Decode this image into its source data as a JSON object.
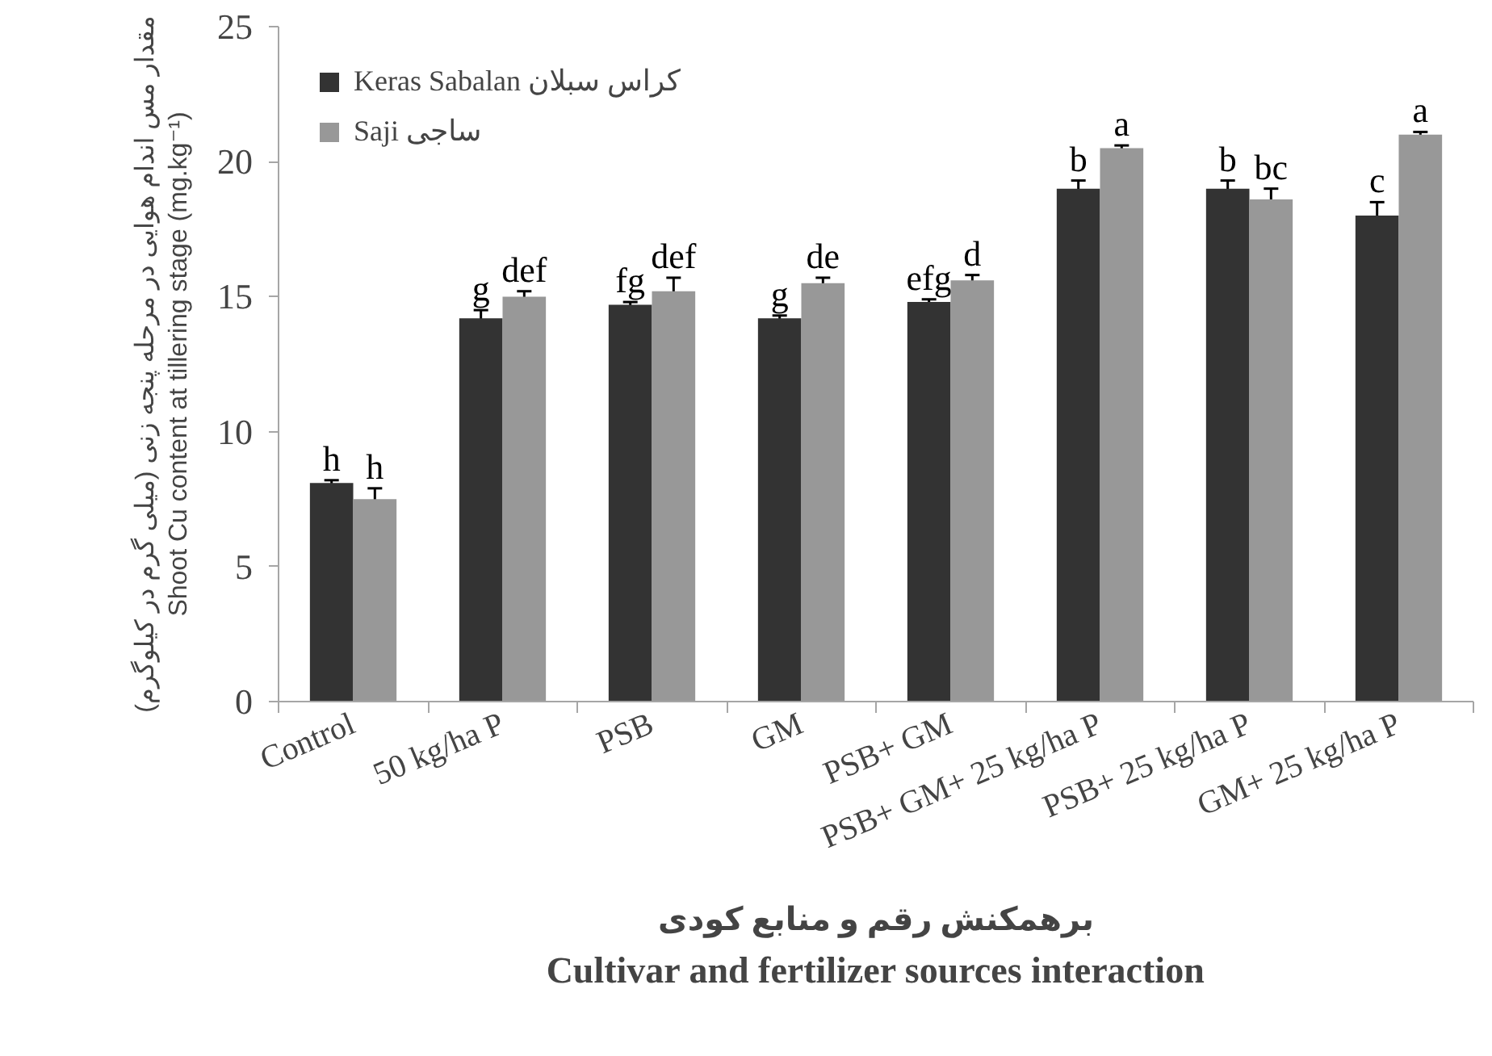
{
  "chart_data": {
    "type": "bar",
    "ylabel": "مقدار مس اندام هوایی در مرحله پنجه زنی (میلی گرم در کیلوگرم)\nShoot Cu content at tillering stage (mg.kg⁻¹)",
    "xlabel": "برهمکنش رقم و منابع کودی\nCultivar and fertilizer sources interaction",
    "categories": [
      "Control",
      "50 kg/ha P",
      "PSB",
      "GM",
      "PSB+ GM",
      "PSB+ GM+ 25 kg/ha P",
      "PSB+ 25 kg/ha P",
      "GM+ 25 kg/ha P"
    ],
    "series": [
      {
        "name": "Keras Sabalan کراس سبلان",
        "color": "#333333",
        "values": [
          8.1,
          14.2,
          14.7,
          14.2,
          14.8,
          19.0,
          19.0,
          18.0
        ],
        "errors": [
          0.1,
          0.3,
          0.1,
          0.1,
          0.1,
          0.3,
          0.3,
          0.5
        ],
        "value_labels": [
          "h",
          "g",
          "fg",
          "g",
          "efg",
          "b",
          "b",
          "c"
        ]
      },
      {
        "name": "Saji ساجی",
        "color": "#989898",
        "values": [
          7.5,
          15.0,
          15.2,
          15.5,
          15.6,
          20.5,
          18.6,
          21.0
        ],
        "errors": [
          0.4,
          0.2,
          0.5,
          0.2,
          0.2,
          0.1,
          0.4,
          0.1
        ],
        "value_labels": [
          "h",
          "def",
          "def",
          "de",
          "d",
          "a",
          "bc",
          "a"
        ]
      }
    ],
    "ylim": [
      0,
      25
    ],
    "yticks": [
      0,
      5,
      10,
      15,
      20,
      25
    ],
    "legend": "top left"
  }
}
